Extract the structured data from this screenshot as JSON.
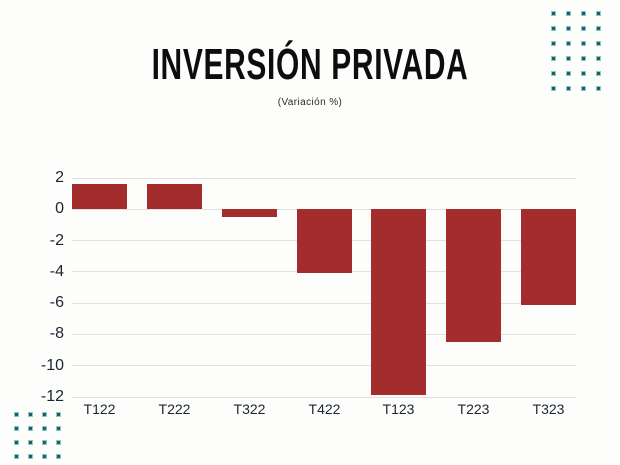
{
  "title": "INVERSIÓN PRIVADA",
  "subtitle": "(Variación %)",
  "colors": {
    "bar": "#A32C2C",
    "gridline": "#E0E0E0",
    "axis_text": "#1C2433",
    "title_text": "#0D0D0D",
    "dot": "#1D5F66",
    "background": "#FDFDFC"
  },
  "chart_data": {
    "type": "bar",
    "title": "INVERSIÓN PRIVADA",
    "subtitle": "(Variación %)",
    "categories": [
      "T122",
      "T222",
      "T322",
      "T422",
      "T123",
      "T223",
      "T323"
    ],
    "values": [
      1.6,
      1.6,
      -0.5,
      -4.1,
      -11.9,
      -8.5,
      -6.1
    ],
    "xlabel": "",
    "ylabel": "",
    "ylim": [
      -12,
      2
    ],
    "yticks": [
      2,
      0,
      -2,
      -4,
      -6,
      -8,
      -10,
      -12
    ],
    "grid": true,
    "legend": "none",
    "bar_color": "#A32C2C"
  },
  "decorations": {
    "dot_grid_top_right": {
      "rows": 6,
      "cols": 4
    },
    "dot_grid_bottom_left": {
      "rows": 4,
      "cols": 4
    }
  }
}
